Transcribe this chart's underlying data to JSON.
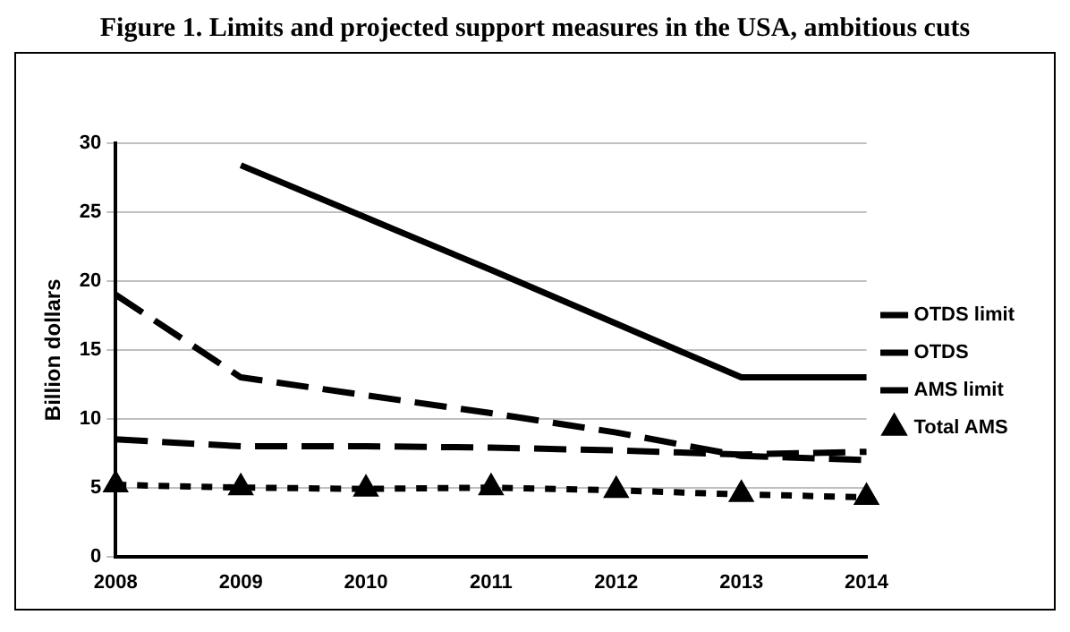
{
  "chart_data": {
    "type": "line",
    "title": "Figure 1. Limits and projected support measures in the USA, ambitious cuts",
    "ylabel": "Billion dollars",
    "categories": [
      "2008",
      "2009",
      "2010",
      "2011",
      "2012",
      "2013",
      "2014"
    ],
    "series": [
      {
        "name": "OTDS limit",
        "color": "#000000",
        "line_style": "solid",
        "marker": "none",
        "values": [
          null,
          28.4,
          24.6,
          20.8,
          16.9,
          13,
          13
        ]
      },
      {
        "name": "OTDS",
        "color": "#000000",
        "line_style": "dashed",
        "marker": "none",
        "values": [
          19,
          13,
          11.7,
          10.4,
          9,
          7.3,
          7
        ]
      },
      {
        "name": "AMS limit",
        "color": "#000000",
        "line_style": "dashed",
        "marker": "none",
        "values": [
          8.5,
          8,
          8,
          7.9,
          7.7,
          7.4,
          7.6
        ]
      },
      {
        "name": "Total AMS",
        "color": "#000000",
        "line_style": "dotted",
        "marker": "triangle",
        "values": [
          5.2,
          5,
          4.9,
          5,
          4.8,
          4.5,
          4.3
        ]
      }
    ],
    "ylim": [
      0,
      30
    ],
    "yticks": [
      0,
      5,
      10,
      15,
      20,
      25,
      30
    ],
    "grid": "y",
    "legend": "right"
  }
}
